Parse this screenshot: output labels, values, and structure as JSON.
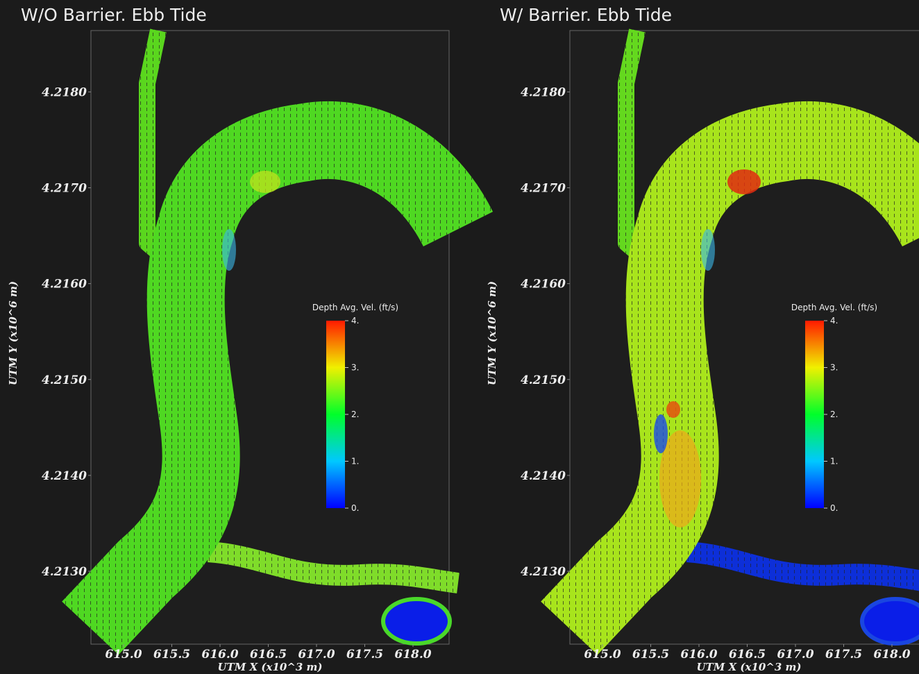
{
  "chart_data": [
    {
      "type": "flowmap",
      "title": "W/O Barrier. Ebb Tide",
      "xlabel": "UTM X  (x10^3 m)",
      "ylabel": "UTM Y  (x10^6 m)",
      "xlim": [
        614.662,
        618.374
      ],
      "ylim": [
        4.21224,
        4.21864
      ],
      "xticks": [
        {
          "value": 615.0,
          "label": "615.0"
        },
        {
          "value": 615.5,
          "label": "615.5"
        },
        {
          "value": 616.0,
          "label": "616.0"
        },
        {
          "value": 616.5,
          "label": "616.5"
        },
        {
          "value": 617.0,
          "label": "617.0"
        },
        {
          "value": 617.5,
          "label": "617.5"
        },
        {
          "value": 618.0,
          "label": "618.0"
        }
      ],
      "yticks": [
        {
          "value": 4.213,
          "label": "4.2130"
        },
        {
          "value": 4.214,
          "label": "4.2140"
        },
        {
          "value": 4.215,
          "label": "4.2150"
        },
        {
          "value": 4.216,
          "label": "4.2160"
        },
        {
          "value": 4.217,
          "label": "4.2170"
        },
        {
          "value": 4.218,
          "label": "4.2180"
        }
      ],
      "colorbar_title": "Depth Avg. Vel. (ft/s)",
      "clim": [
        0,
        4
      ],
      "cticks": [
        {
          "value": 0,
          "label": "0."
        },
        {
          "value": 1,
          "label": "1."
        },
        {
          "value": 2,
          "label": "2."
        },
        {
          "value": 3,
          "label": "3."
        },
        {
          "value": 4,
          "label": "4."
        }
      ]
    },
    {
      "type": "flowmap",
      "title": "W/  Barrier. Ebb Tide",
      "xlabel": "UTM X  (x10^3 m)",
      "ylabel": "UTM Y  (x10^6 m)",
      "xlim": [
        614.662,
        618.374
      ],
      "ylim": [
        4.21224,
        4.21864
      ],
      "xticks": [
        {
          "value": 615.0,
          "label": "615.0"
        },
        {
          "value": 615.5,
          "label": "615.5"
        },
        {
          "value": 616.0,
          "label": "616.0"
        },
        {
          "value": 616.5,
          "label": "616.5"
        },
        {
          "value": 617.0,
          "label": "617.0"
        },
        {
          "value": 617.5,
          "label": "617.5"
        },
        {
          "value": 618.0,
          "label": "618.0"
        }
      ],
      "yticks": [
        {
          "value": 4.213,
          "label": "4.2130"
        },
        {
          "value": 4.214,
          "label": "4.2140"
        },
        {
          "value": 4.215,
          "label": "4.2150"
        },
        {
          "value": 4.216,
          "label": "4.2160"
        },
        {
          "value": 4.217,
          "label": "4.2170"
        },
        {
          "value": 4.218,
          "label": "4.2180"
        }
      ],
      "colorbar_title": "Depth Avg. Vel. (ft/s)",
      "clim": [
        0,
        4
      ],
      "cticks": [
        {
          "value": 0,
          "label": "0."
        },
        {
          "value": 1,
          "label": "1."
        },
        {
          "value": 2,
          "label": "2."
        },
        {
          "value": 3,
          "label": "3."
        },
        {
          "value": 4,
          "label": "4."
        }
      ]
    }
  ]
}
